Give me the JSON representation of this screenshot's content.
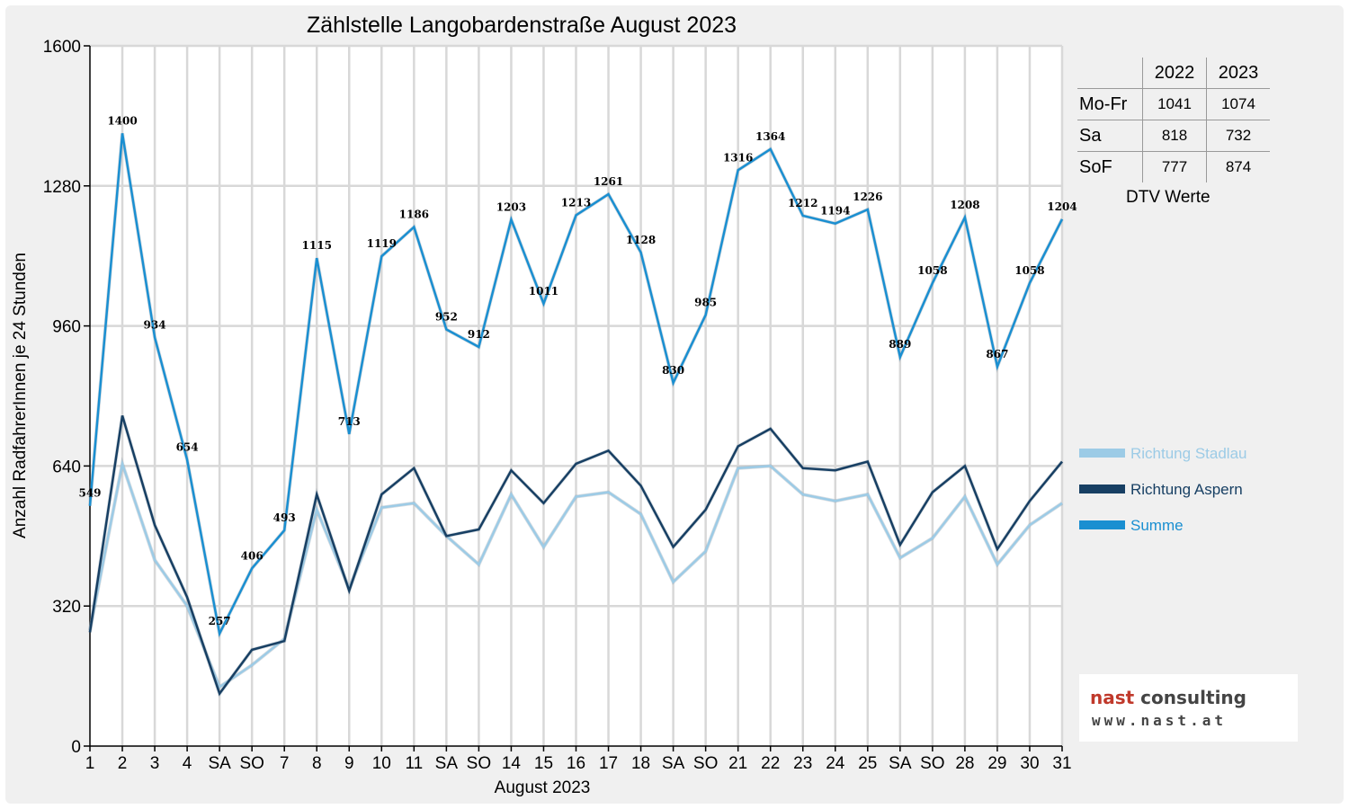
{
  "chart_data": {
    "type": "line",
    "title": "Zählstelle Langobardenstraße August 2023",
    "xlabel": "August 2023",
    "ylabel": "Anzahl RadfahrerInnen je 24 Stunden",
    "ylim": [
      0,
      1600
    ],
    "yticks": [
      "0",
      "320",
      "640",
      "960",
      "1280",
      "1600"
    ],
    "categories": [
      "1",
      "2",
      "3",
      "4",
      "SA",
      "SO",
      "7",
      "8",
      "9",
      "10",
      "11",
      "SA",
      "SO",
      "14",
      "15",
      "16",
      "17",
      "18",
      "SA",
      "SO",
      "21",
      "22",
      "23",
      "24",
      "25",
      "SA",
      "SO",
      "28",
      "29",
      "30",
      "31"
    ],
    "red_categories": [
      5,
      12,
      14,
      19,
      26
    ],
    "grid": true,
    "legend_position": "right",
    "series": [
      {
        "name": "Richtung Stadlau",
        "color": "#9ccbe6",
        "values": [
          265,
          645,
          425,
          320,
          135,
          185,
          245,
          540,
          360,
          545,
          555,
          480,
          415,
          575,
          455,
          570,
          580,
          530,
          375,
          445,
          635,
          640,
          575,
          560,
          575,
          430,
          475,
          570,
          415,
          505,
          555
        ]
      },
      {
        "name": "Richtung Aspern",
        "color": "#173f63",
        "values": [
          260,
          755,
          505,
          340,
          120,
          220,
          240,
          575,
          355,
          575,
          635,
          480,
          495,
          630,
          555,
          645,
          675,
          595,
          455,
          540,
          685,
          725,
          635,
          630,
          650,
          460,
          580,
          640,
          450,
          560,
          650
        ]
      },
      {
        "name": "Summe",
        "color": "#1a8fd1",
        "values": [
          549,
          1400,
          934,
          654,
          257,
          406,
          493,
          1115,
          713,
          1119,
          1186,
          952,
          912,
          1203,
          1011,
          1213,
          1261,
          1128,
          830,
          985,
          1316,
          1364,
          1212,
          1194,
          1226,
          889,
          1058,
          1208,
          867,
          1058,
          1204
        ]
      }
    ],
    "data_labels": [
      "549",
      "1400",
      "934",
      "654",
      "257",
      "406",
      "493",
      "1115",
      "713",
      "1119",
      "1186",
      "952",
      "912",
      "1203",
      "1011",
      "1213",
      "1261",
      "1128",
      "830",
      "985",
      "1316",
      "1364",
      "1212",
      "1194",
      "1226",
      "889",
      "1058",
      "1208",
      "867",
      "1058",
      "1204"
    ]
  },
  "dtv_table": {
    "headers": [
      "",
      "2022",
      "2023"
    ],
    "rows": [
      {
        "label": "Mo-Fr",
        "y2022": "1041",
        "y2023": "1074"
      },
      {
        "label": "Sa",
        "y2022": "818",
        "y2023": "732"
      },
      {
        "label": "SoF",
        "y2022": "777",
        "y2023": "874"
      }
    ],
    "caption": "DTV Werte"
  },
  "logo": {
    "word1": "nast",
    "word2": "consulting",
    "url": "www.nast.at",
    "color_accent": "#c0392b",
    "color_text": "#444444"
  }
}
